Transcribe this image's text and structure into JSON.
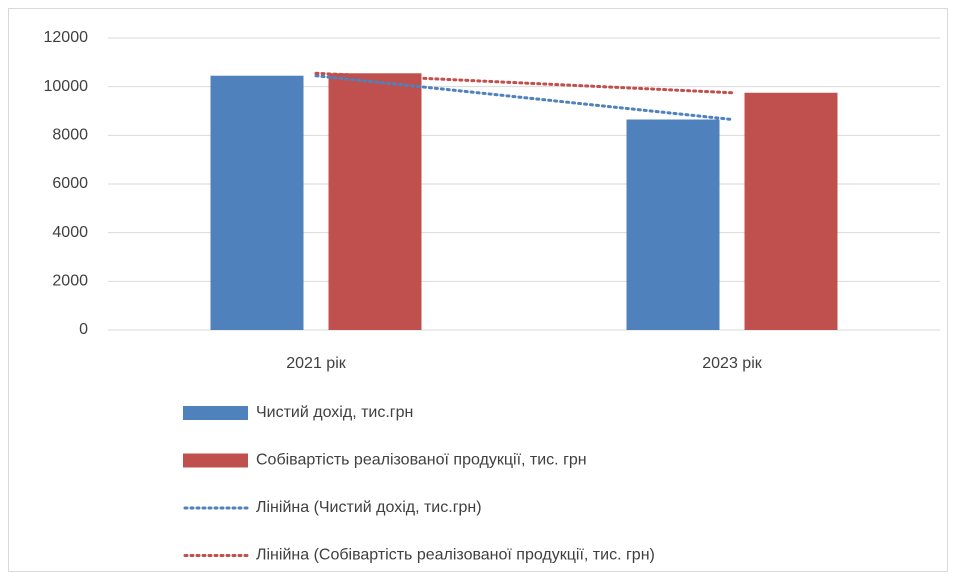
{
  "chart_data": {
    "type": "bar",
    "categories": [
      "2021 рік",
      "2023 рік"
    ],
    "series": [
      {
        "name": "Чистий дохід, тис.грн",
        "type": "bar",
        "color": "#4f81bd",
        "values": [
          10450,
          8650
        ]
      },
      {
        "name": "Собівартість реалізованої продукції, тис. грн",
        "type": "bar",
        "color": "#c0504d",
        "values": [
          10550,
          9750
        ]
      },
      {
        "name": "Лінійна (Чистий дохід, тис.грн)",
        "type": "line",
        "style": "dotted",
        "color": "#4f81bd",
        "values": [
          10450,
          8650
        ]
      },
      {
        "name": "Лінійна (Собівартість реалізованої продукції, тис. грн)",
        "type": "line",
        "style": "dotted",
        "color": "#c0504d",
        "values": [
          10550,
          9750
        ]
      }
    ],
    "ylim": [
      0,
      12000
    ],
    "yticks": [
      0,
      2000,
      4000,
      6000,
      8000,
      10000,
      12000
    ],
    "grid": true,
    "legend": "bottom"
  }
}
